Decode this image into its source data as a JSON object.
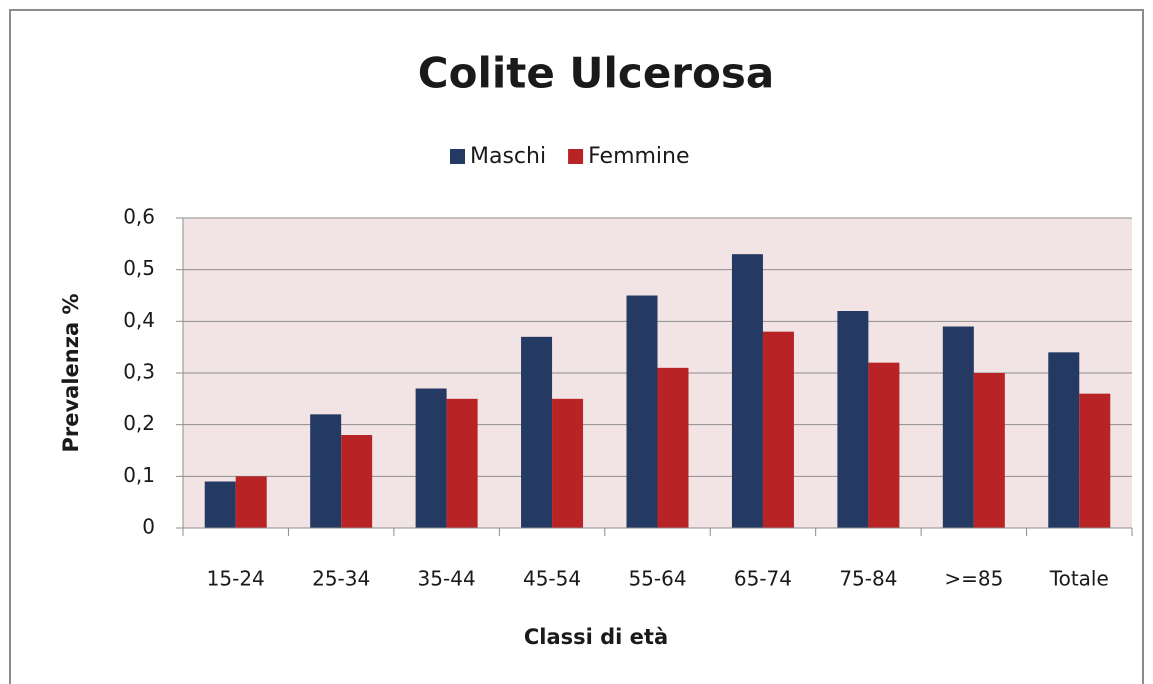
{
  "chart_data": {
    "type": "bar",
    "title": "Colite Ulcerosa",
    "x_label": "Classi di età",
    "y_label": "Prevalenza %",
    "categories": [
      "15-24",
      "25-34",
      "35-44",
      "45-54",
      "55-64",
      "65-74",
      "75-84",
      ">=85",
      "Totale"
    ],
    "series": [
      {
        "name": "Maschi",
        "color": "#243a62",
        "values": [
          0.09,
          0.22,
          0.27,
          0.37,
          0.45,
          0.53,
          0.42,
          0.39,
          0.34
        ]
      },
      {
        "name": "Femmine",
        "color": "#b82426",
        "values": [
          0.1,
          0.18,
          0.25,
          0.25,
          0.31,
          0.38,
          0.32,
          0.3,
          0.26
        ]
      }
    ],
    "ylim": [
      0,
      0.6
    ],
    "yticks": [
      0,
      {
        "value": 0.1,
        "label": "0,1"
      },
      {
        "value": 0.2,
        "label": "0,2"
      },
      {
        "value": 0.3,
        "label": "0,3"
      },
      {
        "value": 0.4,
        "label": "0,4"
      },
      {
        "value": 0.5,
        "label": "0,5"
      },
      {
        "value": 0.6,
        "label": "0,6"
      }
    ],
    "grid": true,
    "legend": "top"
  }
}
